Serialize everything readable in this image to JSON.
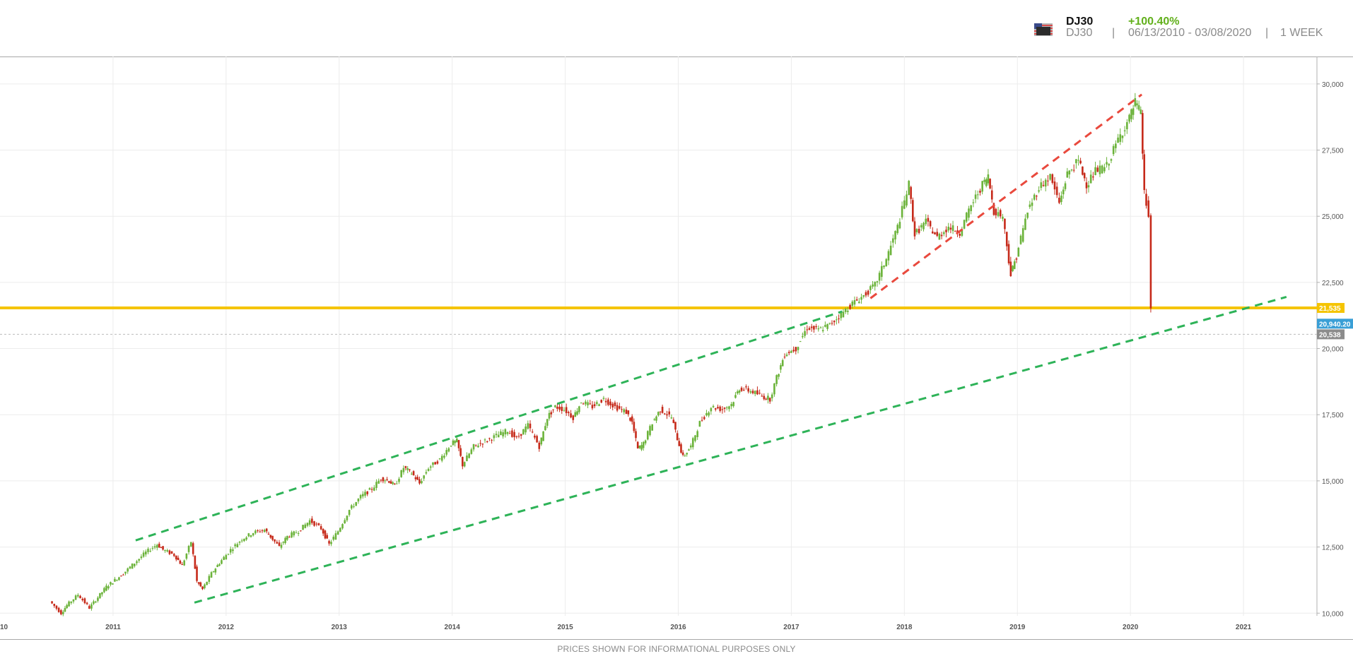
{
  "header": {
    "symbol": "DJ30",
    "change": "+100.40%",
    "sub_symbol": "DJ30",
    "separator": "|",
    "date_range": "06/13/2010 - 03/08/2020",
    "interval": "1 WEEK",
    "flag_icon": "us-flag-icon"
  },
  "footer": {
    "disclaimer": "PRICES SHOWN FOR INFORMATIONAL PURPOSES ONLY"
  },
  "colors": {
    "up": "#6bb33a",
    "down": "#c62a1a",
    "support_line": "#f5c400",
    "channel_green": "#2eb358",
    "channel_red": "#e9493d",
    "last_price_badge": "#3a9fd6",
    "current_badge": "#8c8c8c"
  },
  "chart_data": {
    "type": "line",
    "x_unit": "year",
    "x_start_label": "10",
    "x_ticks": [
      "2011",
      "2012",
      "2013",
      "2014",
      "2015",
      "2016",
      "2017",
      "2018",
      "2019",
      "2020",
      "2021"
    ],
    "y_ticks": [
      "10,000",
      "12,500",
      "15,000",
      "17,500",
      "20,000",
      "22,500",
      "25,000",
      "27,500",
      "30,000"
    ],
    "xlim": [
      2010.0,
      2021.65
    ],
    "ylim": [
      9900,
      30450
    ],
    "grid": true,
    "series": [
      {
        "points": [
          [
            2010.45,
            10450
          ],
          [
            2010.55,
            10000
          ],
          [
            2010.6,
            10300
          ],
          [
            2010.7,
            10700
          ],
          [
            2010.8,
            10200
          ],
          [
            2010.95,
            11000
          ],
          [
            2011.1,
            11500
          ],
          [
            2011.2,
            11900
          ],
          [
            2011.3,
            12300
          ],
          [
            2011.4,
            12600
          ],
          [
            2011.45,
            12400
          ],
          [
            2011.55,
            12200
          ],
          [
            2011.62,
            11800
          ],
          [
            2011.7,
            12700
          ],
          [
            2011.75,
            11200
          ],
          [
            2011.8,
            10900
          ],
          [
            2011.88,
            11500
          ],
          [
            2011.95,
            11900
          ],
          [
            2012.05,
            12400
          ],
          [
            2012.15,
            12800
          ],
          [
            2012.25,
            13050
          ],
          [
            2012.35,
            13150
          ],
          [
            2012.42,
            12800
          ],
          [
            2012.48,
            12500
          ],
          [
            2012.55,
            12900
          ],
          [
            2012.65,
            13100
          ],
          [
            2012.75,
            13500
          ],
          [
            2012.85,
            13200
          ],
          [
            2012.92,
            12600
          ],
          [
            2013.0,
            13100
          ],
          [
            2013.1,
            13900
          ],
          [
            2013.2,
            14400
          ],
          [
            2013.3,
            14700
          ],
          [
            2013.38,
            15100
          ],
          [
            2013.45,
            15000
          ],
          [
            2013.5,
            14800
          ],
          [
            2013.58,
            15500
          ],
          [
            2013.65,
            15300
          ],
          [
            2013.72,
            14900
          ],
          [
            2013.8,
            15500
          ],
          [
            2013.9,
            15800
          ],
          [
            2014.0,
            16400
          ],
          [
            2014.05,
            16500
          ],
          [
            2014.1,
            15600
          ],
          [
            2014.2,
            16300
          ],
          [
            2014.3,
            16500
          ],
          [
            2014.4,
            16700
          ],
          [
            2014.5,
            16900
          ],
          [
            2014.58,
            16600
          ],
          [
            2014.68,
            17100
          ],
          [
            2014.78,
            16300
          ],
          [
            2014.85,
            17400
          ],
          [
            2014.92,
            17800
          ],
          [
            2015.0,
            17700
          ],
          [
            2015.08,
            17400
          ],
          [
            2015.15,
            18000
          ],
          [
            2015.25,
            17800
          ],
          [
            2015.35,
            18100
          ],
          [
            2015.45,
            17800
          ],
          [
            2015.55,
            17600
          ],
          [
            2015.6,
            17200
          ],
          [
            2015.65,
            16200
          ],
          [
            2015.7,
            16400
          ],
          [
            2015.78,
            17200
          ],
          [
            2015.85,
            17700
          ],
          [
            2015.95,
            17400
          ],
          [
            2016.0,
            16600
          ],
          [
            2016.05,
            15900
          ],
          [
            2016.12,
            16300
          ],
          [
            2016.2,
            17200
          ],
          [
            2016.3,
            17800
          ],
          [
            2016.4,
            17700
          ],
          [
            2016.48,
            17900
          ],
          [
            2016.55,
            18500
          ],
          [
            2016.65,
            18400
          ],
          [
            2016.75,
            18200
          ],
          [
            2016.82,
            18100
          ],
          [
            2016.88,
            18900
          ],
          [
            2016.95,
            19800
          ],
          [
            2017.05,
            20000
          ],
          [
            2017.15,
            20800
          ],
          [
            2017.25,
            20700
          ],
          [
            2017.35,
            20900
          ],
          [
            2017.45,
            21300
          ],
          [
            2017.55,
            21700
          ],
          [
            2017.65,
            22000
          ],
          [
            2017.75,
            22400
          ],
          [
            2017.85,
            23400
          ],
          [
            2017.95,
            24600
          ],
          [
            2018.05,
            26200
          ],
          [
            2018.1,
            24300
          ],
          [
            2018.2,
            24800
          ],
          [
            2018.3,
            24200
          ],
          [
            2018.4,
            24600
          ],
          [
            2018.5,
            24400
          ],
          [
            2018.6,
            25400
          ],
          [
            2018.7,
            26200
          ],
          [
            2018.75,
            26500
          ],
          [
            2018.8,
            25200
          ],
          [
            2018.88,
            25000
          ],
          [
            2018.95,
            22800
          ],
          [
            2019.0,
            23500
          ],
          [
            2019.1,
            25200
          ],
          [
            2019.2,
            26100
          ],
          [
            2019.3,
            26500
          ],
          [
            2019.38,
            25500
          ],
          [
            2019.45,
            26600
          ],
          [
            2019.55,
            27100
          ],
          [
            2019.62,
            26200
          ],
          [
            2019.7,
            26700
          ],
          [
            2019.8,
            26900
          ],
          [
            2019.9,
            27900
          ],
          [
            2020.0,
            28700
          ],
          [
            2020.05,
            29300
          ],
          [
            2020.1,
            28900
          ],
          [
            2020.13,
            25900
          ],
          [
            2020.17,
            25000
          ],
          [
            2020.19,
            21500
          ]
        ]
      }
    ],
    "trendlines": [
      {
        "style": "dashed",
        "color": "green",
        "from": [
          2011.2,
          12750
        ],
        "to": [
          2017.45,
          21400
        ]
      },
      {
        "style": "dashed",
        "color": "green",
        "from": [
          2011.72,
          10400
        ],
        "to": [
          2021.38,
          21950
        ]
      },
      {
        "style": "dashed",
        "color": "red",
        "from": [
          2017.7,
          21900
        ],
        "to": [
          2020.1,
          29600
        ]
      }
    ],
    "horizontal_lines": [
      {
        "value": 21535,
        "label": "21,535",
        "style": "solid"
      },
      {
        "value": 20538,
        "label": "20,538",
        "style": "dotted"
      }
    ],
    "last_price": {
      "value": 20940,
      "label": "20,940.20"
    }
  }
}
